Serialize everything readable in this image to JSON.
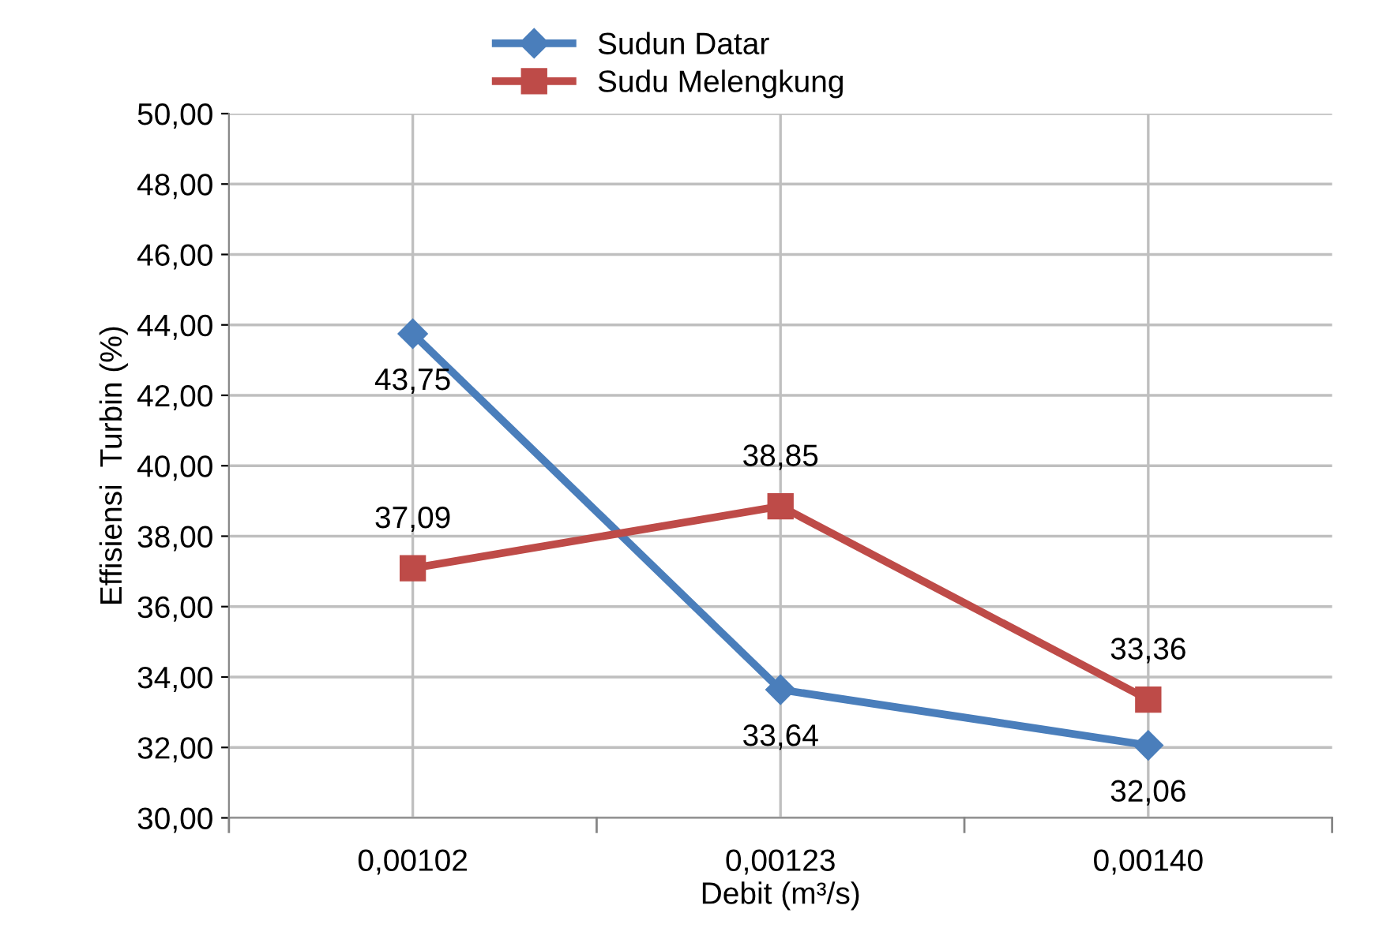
{
  "chart_data": {
    "type": "line",
    "xlabel": "Debit (m³/s)",
    "ylabel": "Effisiensi  Turbin (%)",
    "categories": [
      "0,00102",
      "0,00123",
      "0,00140"
    ],
    "series": [
      {
        "name": "Sudun Datar",
        "color": "#4a7ebb",
        "values": [
          43.75,
          33.64,
          32.06
        ],
        "marker": "diamond",
        "value_labels": [
          "43,75",
          "33,64",
          "32,06"
        ]
      },
      {
        "name": "Sudu Melengkung",
        "color": "#be4b48",
        "values": [
          37.09,
          38.85,
          33.36
        ],
        "marker": "square",
        "value_labels": [
          "37,09",
          "38,85",
          "33,36"
        ]
      }
    ],
    "ylim": [
      30,
      50
    ],
    "yticks": [
      {
        "value": 30,
        "label": "30,00"
      },
      {
        "value": 32,
        "label": "32,00"
      },
      {
        "value": 34,
        "label": "34,00"
      },
      {
        "value": 36,
        "label": "36,00"
      },
      {
        "value": 38,
        "label": "38,00"
      },
      {
        "value": 40,
        "label": "40,00"
      },
      {
        "value": 42,
        "label": "42,00"
      },
      {
        "value": 44,
        "label": "44,00"
      },
      {
        "value": 46,
        "label": "46,00"
      },
      {
        "value": 48,
        "label": "48,00"
      },
      {
        "value": 50,
        "label": "50,00"
      }
    ],
    "grid": true,
    "legend": "top",
    "line_style": "solid"
  }
}
